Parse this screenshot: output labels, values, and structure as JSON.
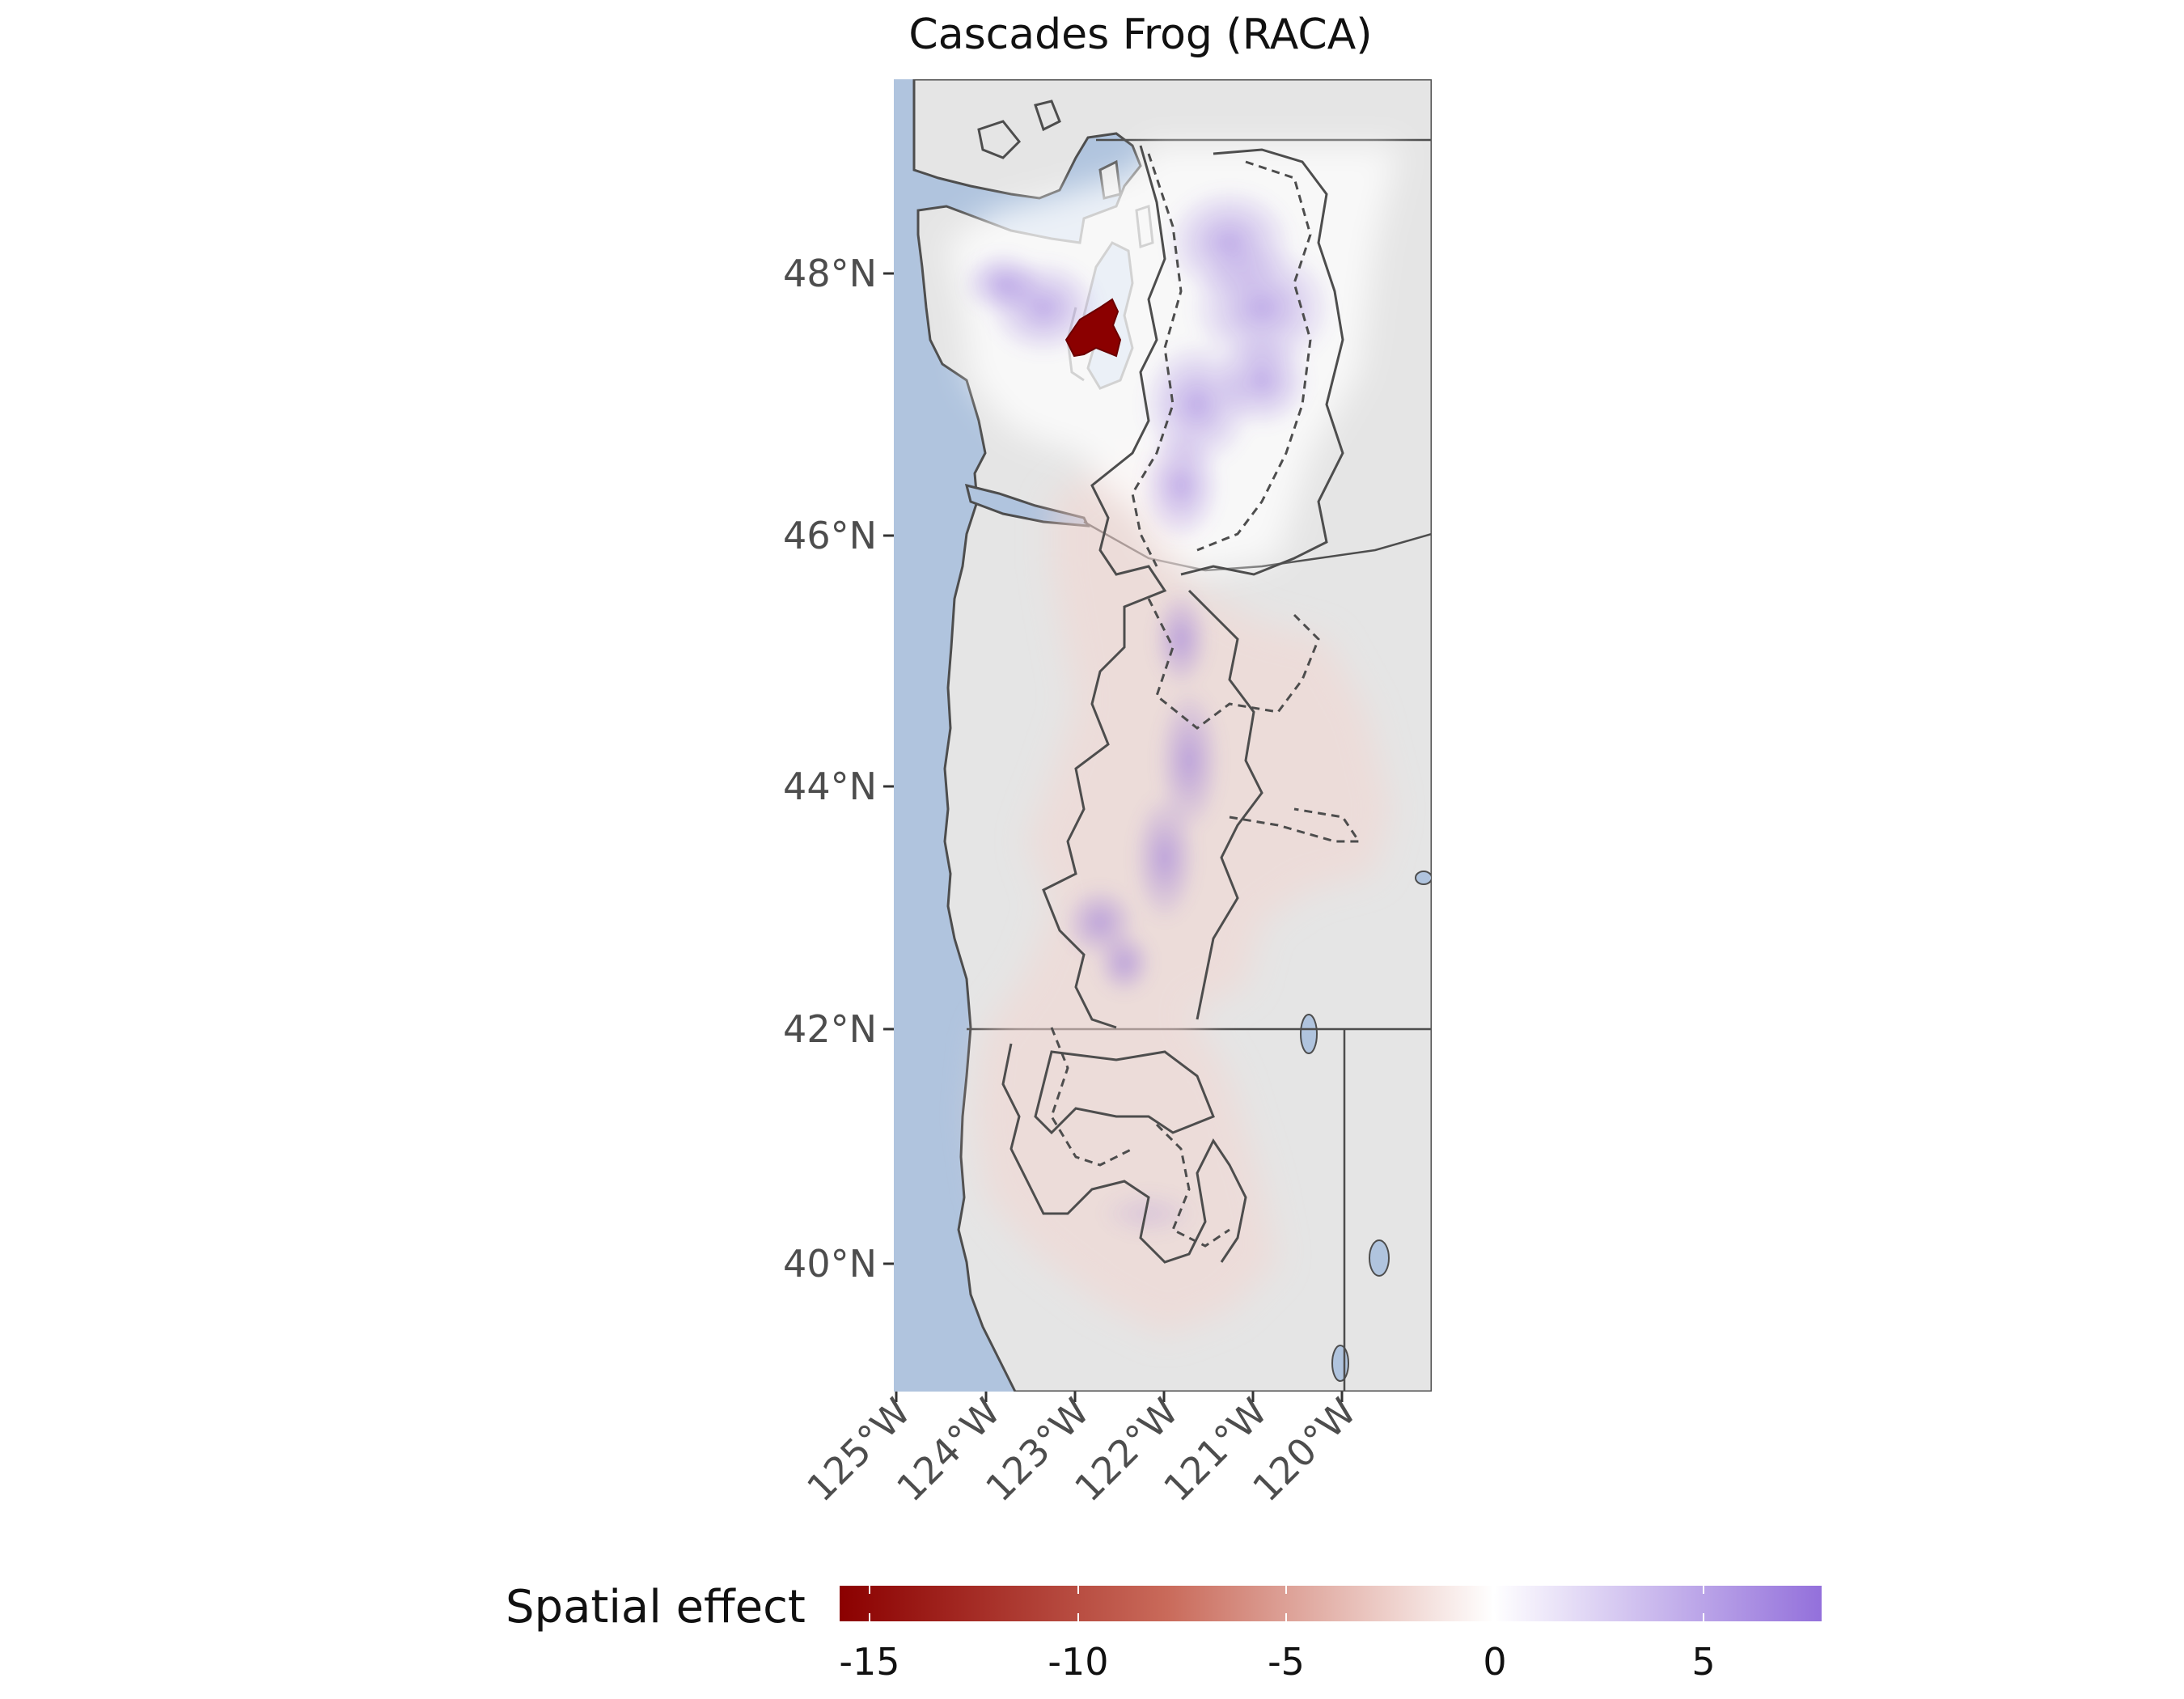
{
  "title": "Cascades Frog (RACA)",
  "map": {
    "lat_ticks": [
      "48°N",
      "46°N",
      "44°N",
      "42°N",
      "40°N"
    ],
    "lon_ticks": [
      "125°W",
      "124°W",
      "123°W",
      "122°W",
      "121°W",
      "120°W"
    ],
    "colors": {
      "ocean": "#b0c4de",
      "land": "#e5e5e5",
      "outline": "#555555"
    }
  },
  "legend": {
    "title": "Spatial effect",
    "labels": [
      "-15",
      "-10",
      "-5",
      "0",
      "5"
    ],
    "range": [
      -16,
      8
    ],
    "colors": {
      "low": "#8b0000",
      "mid": "#ffffff",
      "high": "#9370db"
    }
  }
}
